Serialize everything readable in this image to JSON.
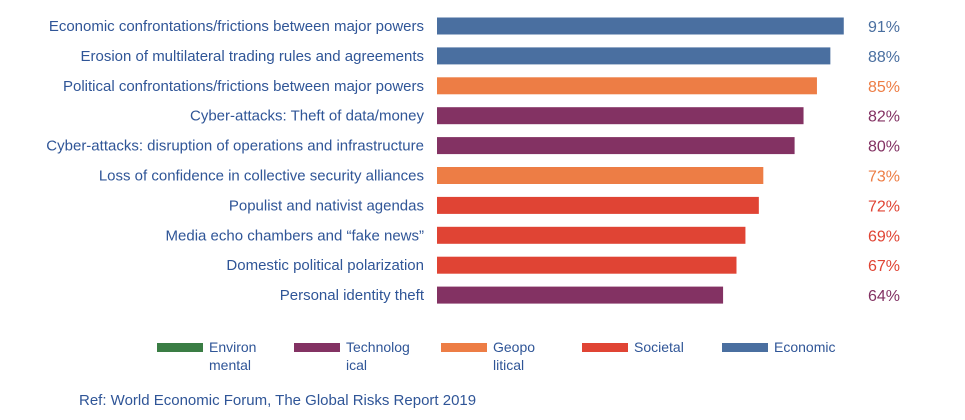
{
  "chart_data": {
    "type": "bar",
    "orientation": "horizontal",
    "title": "",
    "xlabel": "",
    "ylabel": "",
    "xlim": [
      0,
      100
    ],
    "grid": false,
    "legend_position": "bottom",
    "categories": [
      "Economic confrontations/frictions between major powers",
      "Erosion of multilateral trading rules and agreements",
      "Political confrontations/frictions between major powers",
      "Cyber-attacks: Theft of data/money",
      "Cyber-attacks: disruption of operations and infrastructure",
      "Loss of confidence in collective security alliances",
      "Populist and nativist agendas",
      "Media echo chambers and “fake news”",
      "Domestic political polarization",
      "Personal identity theft"
    ],
    "values": [
      91,
      88,
      85,
      82,
      80,
      73,
      72,
      69,
      67,
      64
    ],
    "value_labels": [
      "91%",
      "88%",
      "85%",
      "82%",
      "80%",
      "73%",
      "72%",
      "69%",
      "67%",
      "64%"
    ],
    "bar_groups": [
      "economic",
      "economic",
      "geopolitical",
      "technological",
      "technological",
      "geopolitical",
      "societal",
      "societal",
      "societal",
      "technological"
    ],
    "groups": {
      "environmental": {
        "label": "Environ mental",
        "color": "#3a7d44"
      },
      "technological": {
        "label": "Technolog ical",
        "color": "#833263"
      },
      "geopolitical": {
        "label": "Geopo litical",
        "color": "#ed7d45"
      },
      "societal": {
        "label": "Societal",
        "color": "#e04434"
      },
      "economic": {
        "label": "Economic",
        "color": "#4a6fa0"
      }
    },
    "legend_order": [
      "environmental",
      "technological",
      "geopolitical",
      "societal",
      "economic"
    ]
  },
  "reference": "Ref: World Economic Forum, The Global Risks Report 2019"
}
